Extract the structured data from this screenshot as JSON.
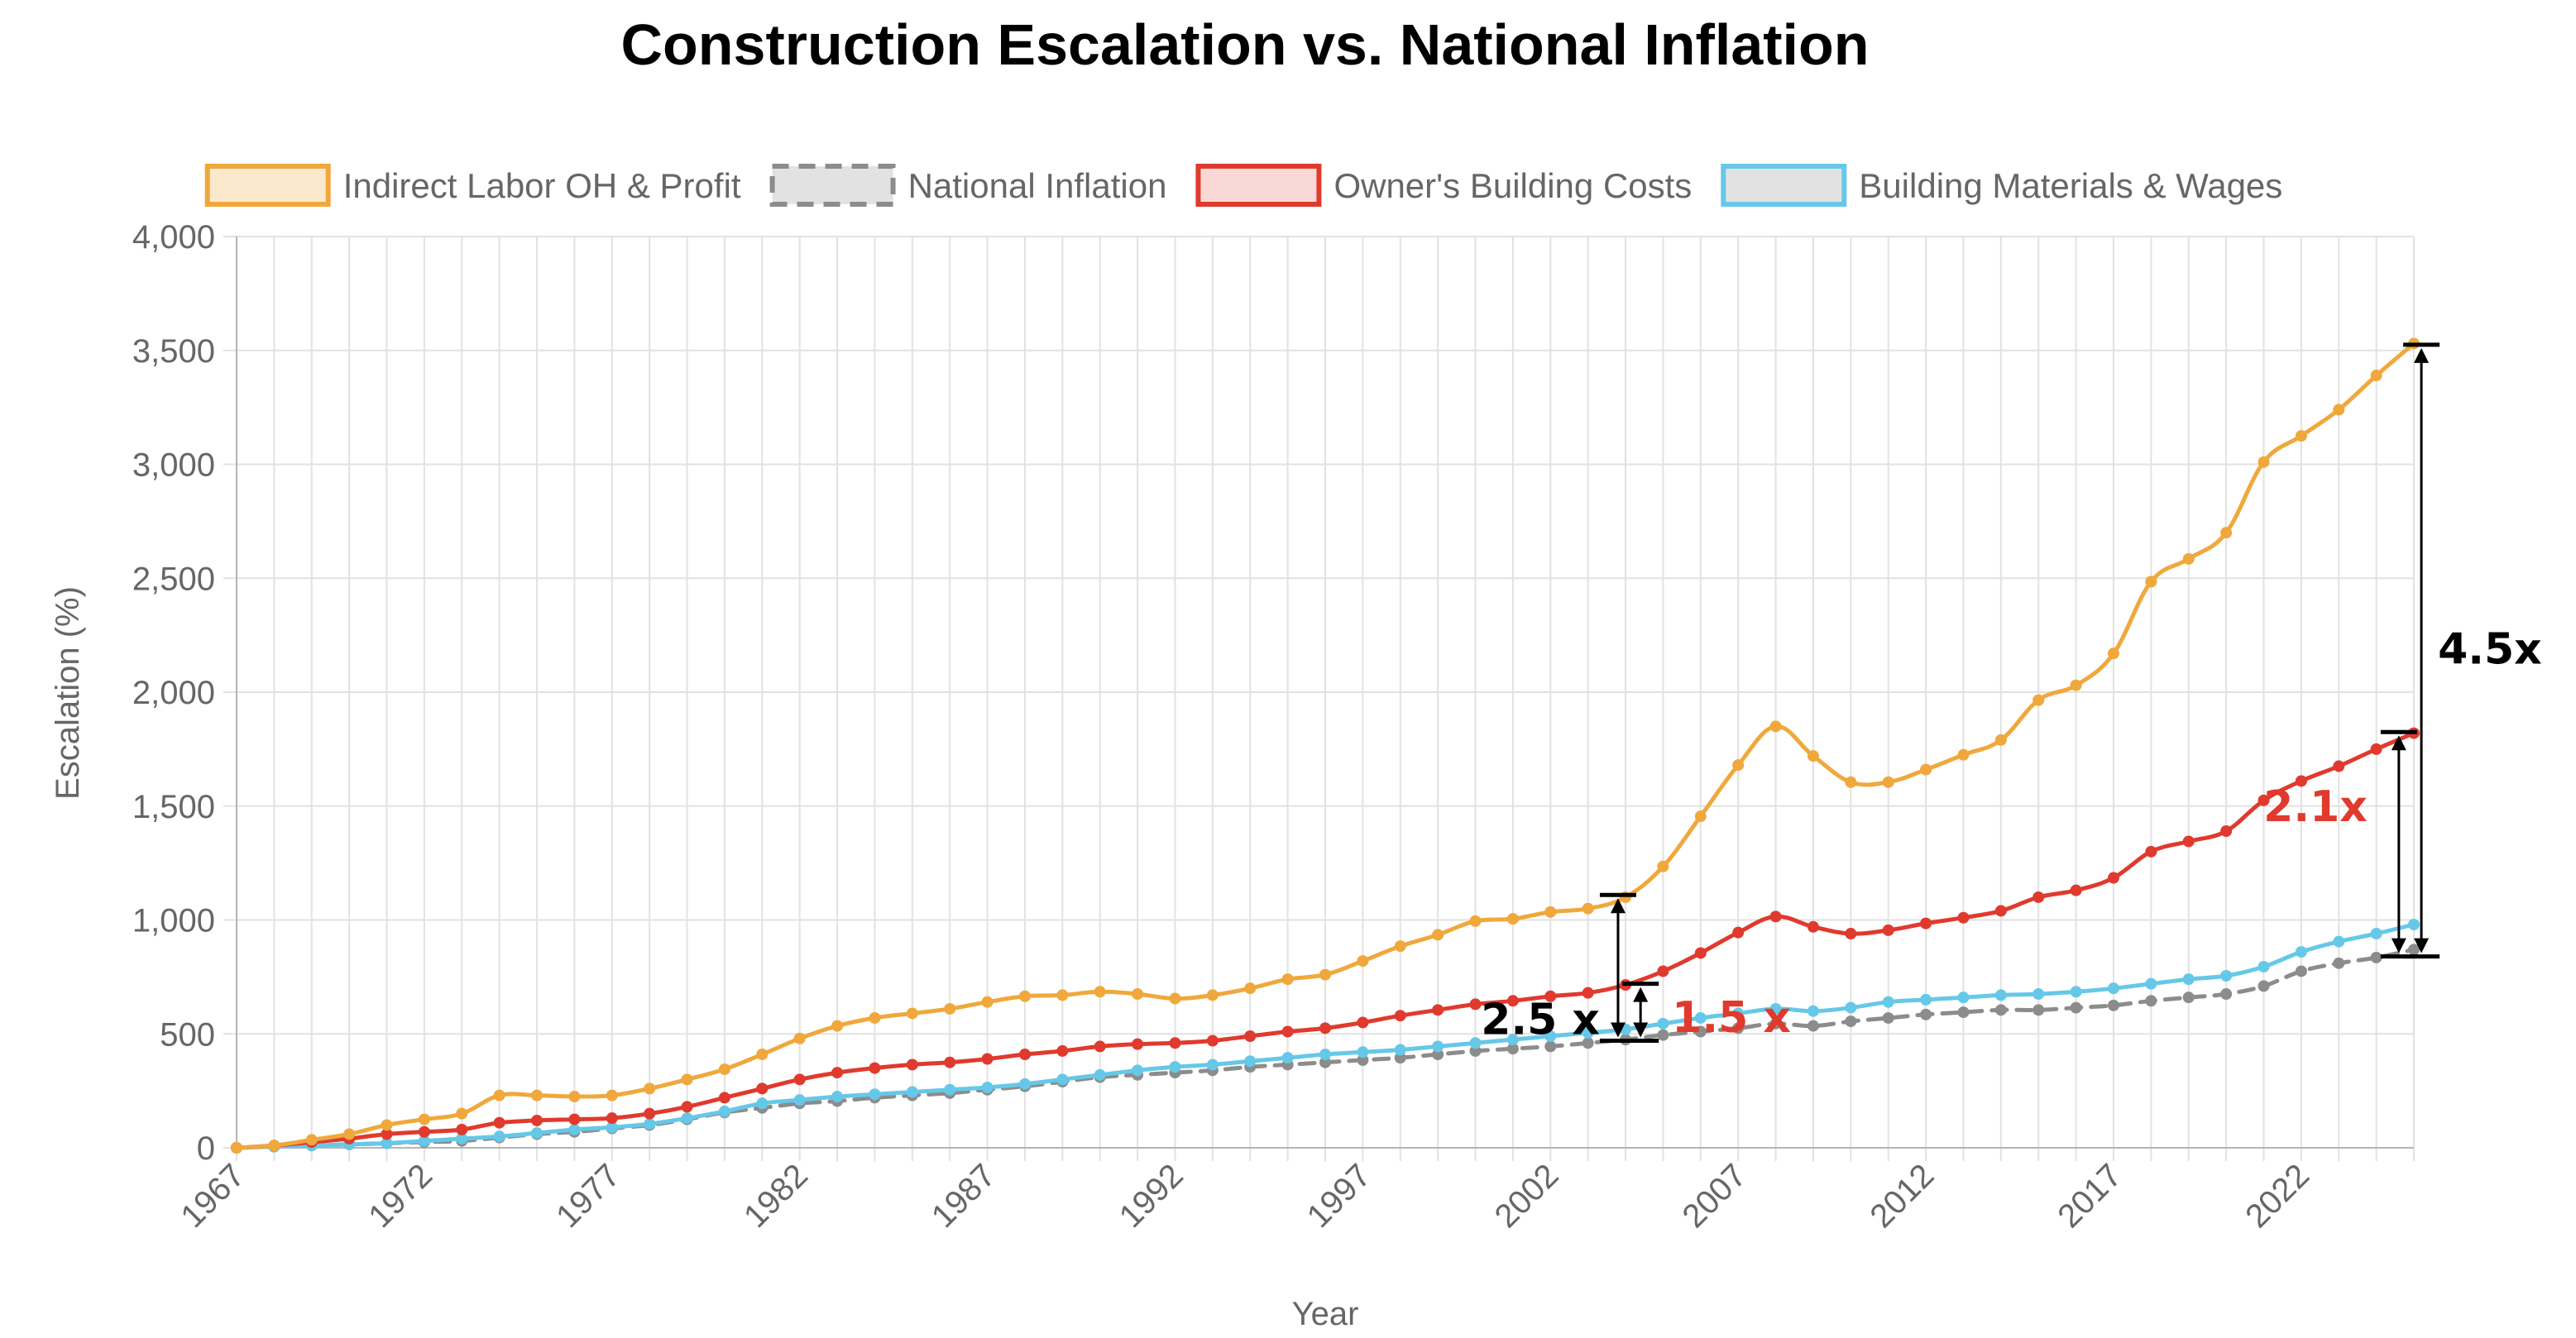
{
  "chart_data": {
    "type": "line",
    "title": "Construction Escalation vs. National Inflation",
    "xlabel": "Year",
    "ylabel": "Escalation (%)",
    "xlim": [
      1967,
      2025
    ],
    "ylim": [
      0,
      4000
    ],
    "y_ticks": [
      0,
      500,
      1000,
      1500,
      2000,
      2500,
      3000,
      3500,
      4000
    ],
    "y_tick_labels": [
      "0",
      "500",
      "1,000",
      "1,500",
      "2,000",
      "2,500",
      "3,000",
      "3,500",
      "4,000"
    ],
    "x_tick_labels": [
      "1967",
      "1972",
      "1977",
      "1982",
      "1987",
      "1992",
      "1997",
      "2002",
      "2007",
      "2012",
      "2017",
      "2022"
    ],
    "grid": true,
    "legend": "top",
    "x": [
      1967,
      1968,
      1969,
      1970,
      1971,
      1972,
      1973,
      1974,
      1975,
      1976,
      1977,
      1978,
      1979,
      1980,
      1981,
      1982,
      1983,
      1984,
      1985,
      1986,
      1987,
      1988,
      1989,
      1990,
      1991,
      1992,
      1993,
      1994,
      1995,
      1996,
      1997,
      1998,
      1999,
      2000,
      2001,
      2002,
      2003,
      2004,
      2005,
      2006,
      2007,
      2008,
      2009,
      2010,
      2011,
      2012,
      2013,
      2014,
      2015,
      2016,
      2017,
      2018,
      2019,
      2020,
      2021,
      2022,
      2023,
      2024,
      2025
    ],
    "series": [
      {
        "name": "Indirect Labor OH & Profit",
        "color": "#f0a83c",
        "dashed": false,
        "values": [
          0,
          10,
          35,
          60,
          100,
          125,
          150,
          230,
          230,
          225,
          230,
          260,
          300,
          345,
          410,
          480,
          535,
          570,
          590,
          610,
          640,
          665,
          670,
          685,
          675,
          655,
          670,
          700,
          740,
          760,
          820,
          885,
          935,
          995,
          1005,
          1035,
          1050,
          1100,
          1235,
          1455,
          1680,
          1850,
          1720,
          1605,
          1605,
          1660,
          1725,
          1790,
          1965,
          2030,
          2170,
          2485,
          2585,
          2700,
          3010,
          3125,
          3240,
          3390,
          3530
        ]
      },
      {
        "name": "National Inflation",
        "color": "#8c8c8c",
        "dashed": true,
        "values": [
          0,
          5,
          10,
          15,
          20,
          25,
          30,
          45,
          60,
          70,
          85,
          100,
          125,
          155,
          175,
          195,
          205,
          220,
          230,
          240,
          255,
          270,
          290,
          310,
          320,
          330,
          340,
          355,
          365,
          375,
          385,
          395,
          410,
          425,
          435,
          445,
          460,
          475,
          495,
          510,
          525,
          545,
          535,
          555,
          570,
          585,
          595,
          605,
          605,
          615,
          625,
          645,
          660,
          675,
          710,
          775,
          810,
          835,
          870
        ]
      },
      {
        "name": "Owner's Building Costs",
        "color": "#e03a2e",
        "dashed": false,
        "values": [
          0,
          10,
          25,
          40,
          60,
          70,
          80,
          110,
          120,
          125,
          130,
          150,
          180,
          220,
          260,
          300,
          330,
          350,
          365,
          375,
          390,
          410,
          425,
          445,
          455,
          460,
          470,
          490,
          510,
          525,
          550,
          580,
          605,
          630,
          645,
          665,
          680,
          715,
          775,
          855,
          945,
          1015,
          970,
          940,
          955,
          985,
          1010,
          1040,
          1100,
          1130,
          1185,
          1300,
          1345,
          1390,
          1525,
          1610,
          1675,
          1750,
          1820
        ]
      },
      {
        "name": "Building Materials & Wages",
        "color": "#66c8e8",
        "dashed": false,
        "values": [
          0,
          5,
          10,
          15,
          20,
          30,
          40,
          50,
          65,
          80,
          90,
          105,
          130,
          160,
          195,
          210,
          225,
          235,
          245,
          255,
          265,
          280,
          300,
          320,
          340,
          355,
          365,
          380,
          395,
          410,
          420,
          430,
          445,
          460,
          475,
          490,
          505,
          520,
          545,
          570,
          590,
          610,
          600,
          615,
          640,
          650,
          660,
          670,
          675,
          685,
          700,
          720,
          740,
          755,
          795,
          860,
          905,
          940,
          980
        ]
      }
    ],
    "annotations": [
      {
        "text": "2.5 x",
        "color": "#000000",
        "x_year": 2003.8,
        "y_from": 470,
        "y_to": 1110
      },
      {
        "text": "1.5 x",
        "color": "#e03a2e",
        "x_year": 2004.4,
        "y_from": 470,
        "y_to": 720
      },
      {
        "text": "2.1x",
        "color": "#e03a2e",
        "x_year": 2024.6,
        "y_from": 840,
        "y_to": 1825
      },
      {
        "text": "4.5x",
        "color": "#000000",
        "x_year": 2025.2,
        "y_from": 840,
        "y_to": 3525
      }
    ]
  }
}
